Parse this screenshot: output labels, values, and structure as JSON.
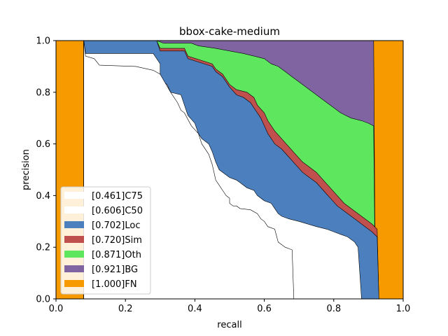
{
  "chart_data": {
    "type": "area",
    "title": "bbox-cake-medium",
    "xlabel": "recall",
    "ylabel": "precision",
    "xlim": [
      0,
      1
    ],
    "ylim": [
      0,
      1
    ],
    "xticks": [
      "0.0",
      "0.2",
      "0.4",
      "0.6",
      "0.8",
      "1.0"
    ],
    "yticks": [
      "0.0",
      "0.2",
      "0.4",
      "0.6",
      "0.8",
      "1.0"
    ],
    "grid": false,
    "legend_position": "lower-left",
    "series": [
      {
        "name": "[0.461]C75",
        "color": "#ffffff",
        "points": [
          [
            0.08,
            1.0
          ],
          [
            0.085,
            0.94
          ],
          [
            0.11,
            0.93
          ],
          [
            0.125,
            0.905
          ],
          [
            0.23,
            0.9
          ],
          [
            0.28,
            0.885
          ],
          [
            0.3,
            0.87
          ],
          [
            0.33,
            0.8
          ],
          [
            0.35,
            0.76
          ],
          [
            0.36,
            0.73
          ],
          [
            0.37,
            0.72
          ],
          [
            0.39,
            0.67
          ],
          [
            0.41,
            0.64
          ],
          [
            0.42,
            0.6
          ],
          [
            0.44,
            0.56
          ],
          [
            0.45,
            0.52
          ],
          [
            0.46,
            0.46
          ],
          [
            0.47,
            0.44
          ],
          [
            0.48,
            0.42
          ],
          [
            0.49,
            0.4
          ],
          [
            0.5,
            0.39
          ],
          [
            0.5,
            0.37
          ],
          [
            0.51,
            0.36
          ],
          [
            0.52,
            0.36
          ],
          [
            0.53,
            0.35
          ],
          [
            0.56,
            0.345
          ],
          [
            0.58,
            0.33
          ],
          [
            0.59,
            0.31
          ],
          [
            0.6,
            0.3
          ],
          [
            0.61,
            0.28
          ],
          [
            0.63,
            0.27
          ],
          [
            0.64,
            0.22
          ],
          [
            0.66,
            0.2
          ],
          [
            0.68,
            0.19
          ],
          [
            0.685,
            0.0
          ]
        ]
      },
      {
        "name": "[0.606]C50",
        "color": "#ffffff",
        "points": [
          [
            0.08,
            1.0
          ],
          [
            0.085,
            0.95
          ],
          [
            0.28,
            0.95
          ],
          [
            0.3,
            0.91
          ],
          [
            0.3,
            0.85
          ],
          [
            0.32,
            0.83
          ],
          [
            0.33,
            0.8
          ],
          [
            0.36,
            0.79
          ],
          [
            0.37,
            0.75
          ],
          [
            0.38,
            0.71
          ],
          [
            0.4,
            0.68
          ],
          [
            0.41,
            0.64
          ],
          [
            0.42,
            0.62
          ],
          [
            0.44,
            0.6
          ],
          [
            0.45,
            0.57
          ],
          [
            0.46,
            0.53
          ],
          [
            0.47,
            0.5
          ],
          [
            0.49,
            0.48
          ],
          [
            0.5,
            0.47
          ],
          [
            0.52,
            0.46
          ],
          [
            0.53,
            0.45
          ],
          [
            0.55,
            0.43
          ],
          [
            0.57,
            0.42
          ],
          [
            0.58,
            0.4
          ],
          [
            0.6,
            0.38
          ],
          [
            0.62,
            0.37
          ],
          [
            0.63,
            0.35
          ],
          [
            0.64,
            0.33
          ],
          [
            0.65,
            0.32
          ],
          [
            0.67,
            0.31
          ],
          [
            0.7,
            0.3
          ],
          [
            0.75,
            0.28
          ],
          [
            0.78,
            0.27
          ],
          [
            0.8,
            0.26
          ],
          [
            0.82,
            0.25
          ],
          [
            0.84,
            0.24
          ],
          [
            0.86,
            0.22
          ],
          [
            0.87,
            0.2
          ],
          [
            0.875,
            0.1
          ],
          [
            0.88,
            0.0
          ]
        ]
      },
      {
        "name": "[0.702]Loc",
        "color": "#4c7fbe",
        "points": [
          [
            0.08,
            1.0
          ],
          [
            0.29,
            1.0
          ],
          [
            0.3,
            0.96
          ],
          [
            0.37,
            0.96
          ],
          [
            0.38,
            0.93
          ],
          [
            0.45,
            0.9
          ],
          [
            0.46,
            0.88
          ],
          [
            0.48,
            0.86
          ],
          [
            0.5,
            0.82
          ],
          [
            0.52,
            0.79
          ],
          [
            0.54,
            0.78
          ],
          [
            0.56,
            0.76
          ],
          [
            0.57,
            0.74
          ],
          [
            0.59,
            0.7
          ],
          [
            0.6,
            0.67
          ],
          [
            0.61,
            0.64
          ],
          [
            0.63,
            0.6
          ],
          [
            0.65,
            0.58
          ],
          [
            0.67,
            0.55
          ],
          [
            0.69,
            0.52
          ],
          [
            0.71,
            0.49
          ],
          [
            0.73,
            0.47
          ],
          [
            0.75,
            0.45
          ],
          [
            0.77,
            0.42
          ],
          [
            0.79,
            0.39
          ],
          [
            0.81,
            0.36
          ],
          [
            0.83,
            0.34
          ],
          [
            0.85,
            0.32
          ],
          [
            0.87,
            0.3
          ],
          [
            0.89,
            0.28
          ],
          [
            0.91,
            0.26
          ],
          [
            0.925,
            0.24
          ],
          [
            0.93,
            0.0
          ]
        ]
      },
      {
        "name": "[0.720]Sim",
        "color": "#c0504d",
        "points": [
          [
            0.08,
            1.0
          ],
          [
            0.29,
            1.0
          ],
          [
            0.3,
            0.97
          ],
          [
            0.37,
            0.97
          ],
          [
            0.38,
            0.94
          ],
          [
            0.45,
            0.91
          ],
          [
            0.46,
            0.89
          ],
          [
            0.48,
            0.87
          ],
          [
            0.5,
            0.83
          ],
          [
            0.52,
            0.81
          ],
          [
            0.55,
            0.8
          ],
          [
            0.57,
            0.78
          ],
          [
            0.58,
            0.75
          ],
          [
            0.6,
            0.72
          ],
          [
            0.61,
            0.69
          ],
          [
            0.63,
            0.65
          ],
          [
            0.65,
            0.62
          ],
          [
            0.67,
            0.59
          ],
          [
            0.69,
            0.56
          ],
          [
            0.71,
            0.53
          ],
          [
            0.73,
            0.51
          ],
          [
            0.75,
            0.49
          ],
          [
            0.77,
            0.46
          ],
          [
            0.79,
            0.43
          ],
          [
            0.81,
            0.4
          ],
          [
            0.83,
            0.37
          ],
          [
            0.85,
            0.35
          ],
          [
            0.87,
            0.33
          ],
          [
            0.89,
            0.31
          ],
          [
            0.91,
            0.29
          ],
          [
            0.925,
            0.27
          ],
          [
            0.93,
            0.0
          ]
        ]
      },
      {
        "name": "[0.871]Oth",
        "color": "#5ee65e",
        "points": [
          [
            0.08,
            1.0
          ],
          [
            0.29,
            1.0
          ],
          [
            0.31,
            0.99
          ],
          [
            0.39,
            0.99
          ],
          [
            0.41,
            0.98
          ],
          [
            0.46,
            0.97
          ],
          [
            0.5,
            0.96
          ],
          [
            0.54,
            0.95
          ],
          [
            0.57,
            0.94
          ],
          [
            0.6,
            0.93
          ],
          [
            0.62,
            0.91
          ],
          [
            0.64,
            0.9
          ],
          [
            0.66,
            0.88
          ],
          [
            0.68,
            0.86
          ],
          [
            0.7,
            0.84
          ],
          [
            0.72,
            0.82
          ],
          [
            0.74,
            0.8
          ],
          [
            0.76,
            0.78
          ],
          [
            0.78,
            0.76
          ],
          [
            0.8,
            0.74
          ],
          [
            0.82,
            0.72
          ],
          [
            0.85,
            0.7
          ],
          [
            0.88,
            0.69
          ],
          [
            0.9,
            0.68
          ],
          [
            0.915,
            0.67
          ],
          [
            0.92,
            0.0
          ]
        ]
      },
      {
        "name": "[0.921]BG",
        "color": "#8064a2",
        "points": [
          [
            0.08,
            1.0
          ],
          [
            0.915,
            1.0
          ],
          [
            0.92,
            0.0
          ]
        ]
      },
      {
        "name": "[1.000]FN",
        "color": "#f79a00",
        "points": [
          [
            0.0,
            1.0
          ],
          [
            1.0,
            1.0
          ],
          [
            1.0,
            0.0
          ]
        ]
      }
    ]
  }
}
